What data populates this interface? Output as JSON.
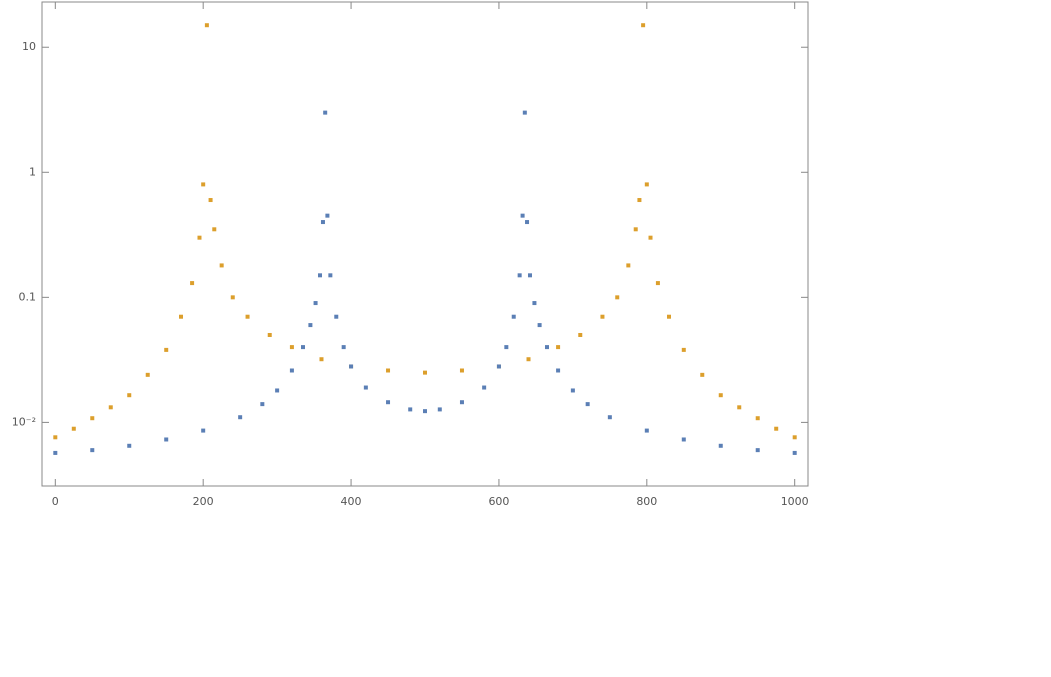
{
  "chart_data": {
    "type": "scatter",
    "log_y": true,
    "xlim": [
      -18,
      1018
    ],
    "xticks": [
      0,
      200,
      400,
      600,
      800,
      1000
    ],
    "ylim": [
      0.0031,
      23
    ],
    "yticks": [
      {
        "value": 0.01,
        "label": "10⁻²"
      },
      0.1,
      1,
      10
    ],
    "series": [
      {
        "color": "#dc9f2c",
        "x": [
          0,
          25,
          50,
          75,
          100,
          125,
          150,
          170,
          185,
          195,
          200,
          205,
          210,
          215,
          225,
          240,
          260,
          290,
          320,
          360,
          400,
          450,
          500,
          550,
          600,
          640,
          680,
          710,
          740,
          760,
          775,
          785,
          790,
          795,
          800,
          805,
          815,
          830,
          850,
          875,
          900,
          925,
          950,
          975,
          1000
        ],
        "values": [
          0.0076,
          0.0089,
          0.0108,
          0.0132,
          0.0165,
          0.024,
          0.038,
          0.07,
          0.13,
          0.3,
          0.8,
          15,
          0.6,
          0.35,
          0.18,
          0.1,
          0.07,
          0.05,
          0.04,
          0.032,
          0.028,
          0.026,
          0.025,
          0.026,
          0.028,
          0.032,
          0.04,
          0.05,
          0.07,
          0.1,
          0.18,
          0.35,
          0.6,
          15,
          0.8,
          0.3,
          0.13,
          0.07,
          0.038,
          0.024,
          0.0165,
          0.0132,
          0.0108,
          0.0089,
          0.0076
        ]
      },
      {
        "color": "#5b7fb5",
        "x": [
          0,
          50,
          100,
          150,
          200,
          250,
          280,
          300,
          320,
          335,
          345,
          352,
          358,
          362,
          365,
          368,
          372,
          380,
          390,
          400,
          420,
          450,
          480,
          500,
          520,
          550,
          580,
          600,
          610,
          620,
          628,
          632,
          635,
          638,
          642,
          648,
          655,
          665,
          680,
          700,
          720,
          750,
          800,
          850,
          900,
          950,
          1000
        ],
        "values": [
          0.0057,
          0.006,
          0.0065,
          0.0073,
          0.0086,
          0.011,
          0.014,
          0.018,
          0.026,
          0.04,
          0.06,
          0.09,
          0.15,
          0.4,
          3,
          0.45,
          0.15,
          0.07,
          0.04,
          0.028,
          0.019,
          0.0145,
          0.0127,
          0.0123,
          0.0127,
          0.0145,
          0.019,
          0.028,
          0.04,
          0.07,
          0.15,
          0.45,
          3,
          0.4,
          0.15,
          0.09,
          0.06,
          0.04,
          0.026,
          0.018,
          0.014,
          0.011,
          0.0086,
          0.0073,
          0.0065,
          0.006,
          0.0057
        ]
      }
    ]
  }
}
